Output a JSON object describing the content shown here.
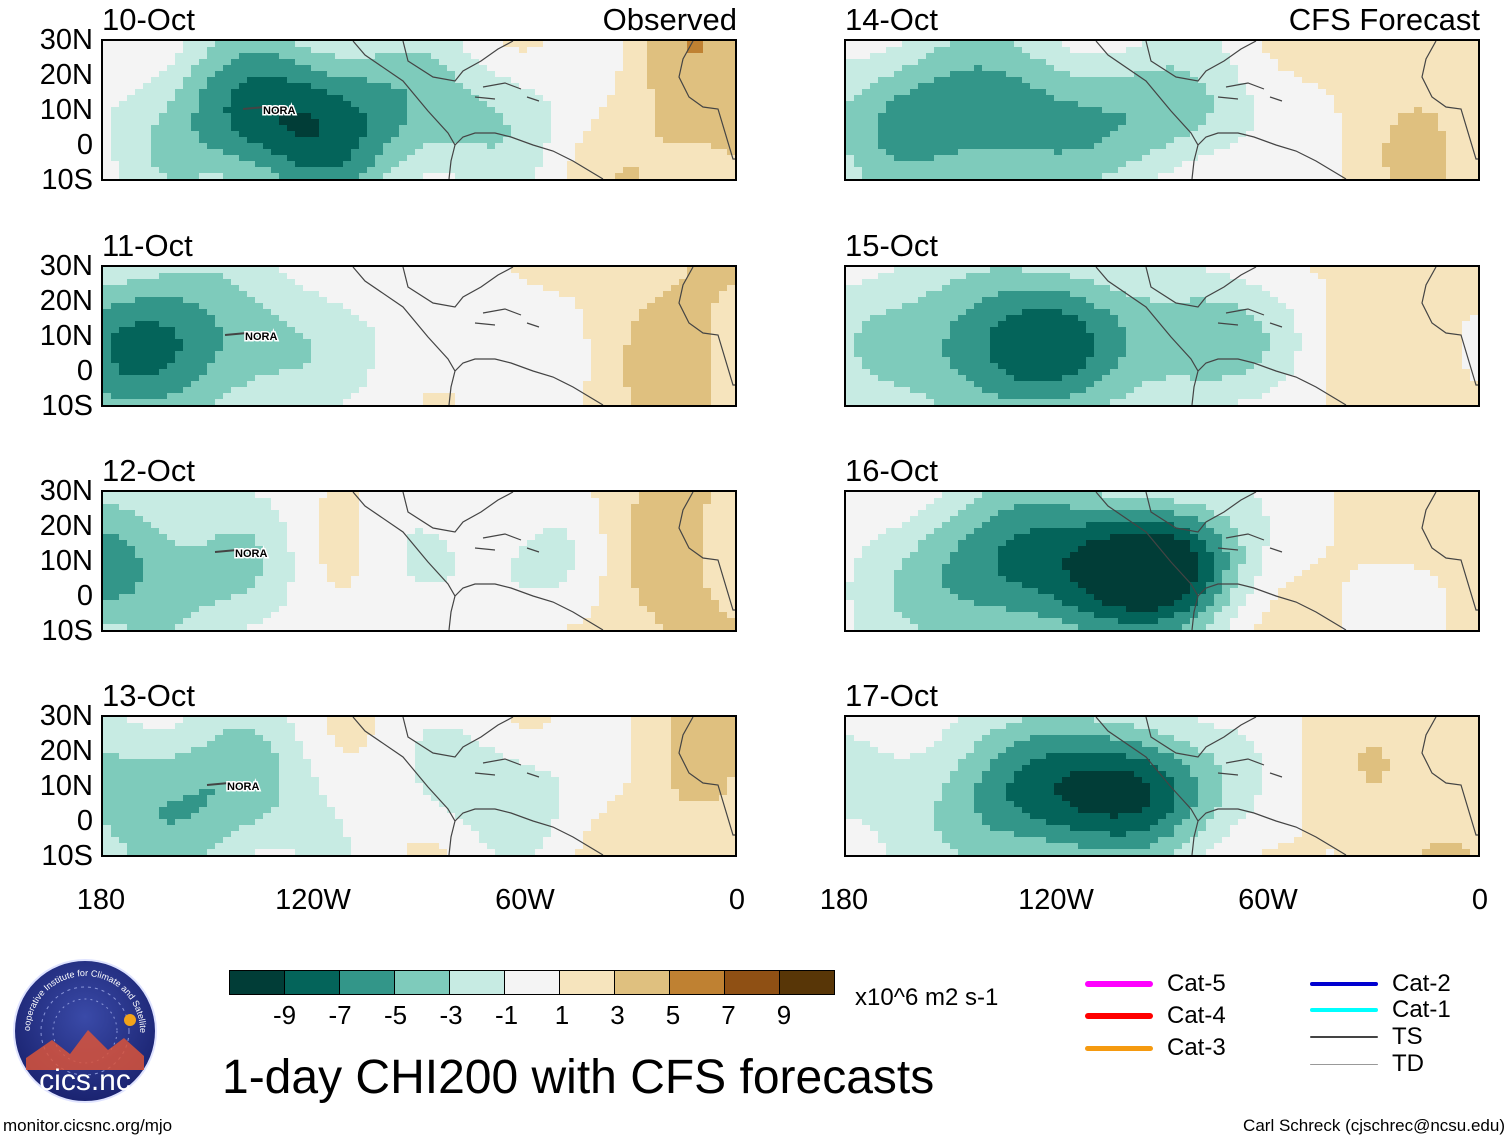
{
  "panels": [
    {
      "date": "10-Oct",
      "label": "Observed",
      "storm": "NORA",
      "column": "left",
      "row": 0
    },
    {
      "date": "11-Oct",
      "label": "",
      "storm": "NORA",
      "column": "left",
      "row": 1
    },
    {
      "date": "12-Oct",
      "label": "",
      "storm": "NORA",
      "column": "left",
      "row": 2
    },
    {
      "date": "13-Oct",
      "label": "",
      "storm": "NORA",
      "column": "left",
      "row": 3
    },
    {
      "date": "14-Oct",
      "label": "CFS Forecast",
      "storm": "",
      "column": "right",
      "row": 0
    },
    {
      "date": "15-Oct",
      "label": "",
      "storm": "",
      "column": "right",
      "row": 1
    },
    {
      "date": "16-Oct",
      "label": "",
      "storm": "",
      "column": "right",
      "row": 2
    },
    {
      "date": "17-Oct",
      "label": "",
      "storm": "",
      "column": "right",
      "row": 3
    }
  ],
  "axes": {
    "lat_ticks": [
      "30N",
      "20N",
      "10N",
      "0",
      "10S"
    ],
    "lon_ticks": [
      "180",
      "120W",
      "60W",
      "0"
    ]
  },
  "colorbar": {
    "labels": [
      "-9",
      "-7",
      "-5",
      "-3",
      "-1",
      "1",
      "3",
      "5",
      "7",
      "9"
    ],
    "colors": [
      "#013d37",
      "#04645a",
      "#339689",
      "#7ecbbb",
      "#c7ebe3",
      "#f4f4f4",
      "#f6e4bd",
      "#dfc07f",
      "#bf8132",
      "#8f5014",
      "#583607"
    ],
    "units": "x10^6 m2 s-1"
  },
  "title": "1-day CHI200 with CFS forecasts",
  "legend": [
    {
      "label": "Cat-5",
      "color": "#ff00ff",
      "width": 6
    },
    {
      "label": "Cat-4",
      "color": "#ff0000",
      "width": 6
    },
    {
      "label": "Cat-3",
      "color": "#f59a10",
      "width": 5
    },
    {
      "label": "Cat-2",
      "color": "#0000d0",
      "width": 4
    },
    {
      "label": "Cat-1",
      "color": "#00ffff",
      "width": 4
    },
    {
      "label": "TS",
      "color": "#444444",
      "width": 2
    },
    {
      "label": "TD",
      "color": "#999999",
      "width": 1
    }
  ],
  "logo": {
    "arc_text": "Cooperative Institute for Climate and Satellites",
    "name": "cics.nc"
  },
  "footer": {
    "left": "monitor.cicsnc.org/mjo",
    "right": "Carl Schreck (cjschrec@ncsu.edu)"
  }
}
